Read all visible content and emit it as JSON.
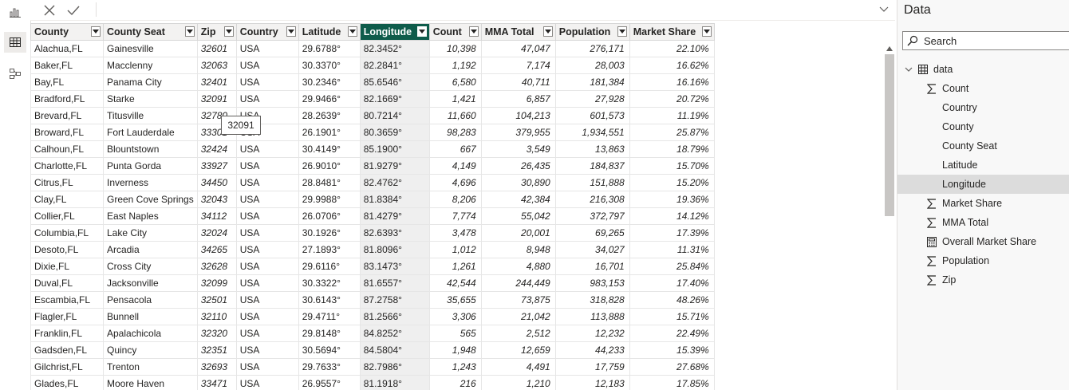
{
  "formula_bar": {
    "cancel_icon": "close-icon",
    "commit_icon": "check-icon"
  },
  "rail": {
    "items": [
      "report-view-icon",
      "table-view-icon",
      "model-view-icon"
    ]
  },
  "columns": [
    {
      "label": "County",
      "width": 91
    },
    {
      "label": "County Seat",
      "width": 114
    },
    {
      "label": "Zip",
      "width": 49
    },
    {
      "label": "Country",
      "width": 78
    },
    {
      "label": "Latitude",
      "width": 77
    },
    {
      "label": "Longitude",
      "width": 87
    },
    {
      "label": "Count",
      "width": 65
    },
    {
      "label": "MMA Total",
      "width": 93
    },
    {
      "label": "Population",
      "width": 93
    },
    {
      "label": "Market Share",
      "width": 106
    }
  ],
  "selected_column": "Longitude",
  "rows": [
    [
      "Alachua,FL",
      "Gainesville",
      "32601",
      "USA",
      "29.6788°",
      "82.3452°",
      "10,398",
      "47,047",
      "276,171",
      "22.10%"
    ],
    [
      "Baker,FL",
      "Macclenny",
      "32063",
      "USA",
      "30.3370°",
      "82.2841°",
      "1,192",
      "7,174",
      "28,003",
      "16.62%"
    ],
    [
      "Bay,FL",
      "Panama City",
      "32401",
      "USA",
      "30.2346°",
      "85.6546°",
      "6,580",
      "40,711",
      "181,384",
      "16.16%"
    ],
    [
      "Bradford,FL",
      "Starke",
      "32091",
      "USA",
      "29.9466°",
      "82.1669°",
      "1,421",
      "6,857",
      "27,928",
      "20.72%"
    ],
    [
      "Brevard,FL",
      "Titusville",
      "32780",
      "USA",
      "28.2639°",
      "80.7214°",
      "11,660",
      "104,213",
      "601,573",
      "11.19%"
    ],
    [
      "Broward,FL",
      "Fort Lauderdale",
      "33301",
      "USA",
      "26.1901°",
      "80.3659°",
      "98,283",
      "379,955",
      "1,934,551",
      "25.87%"
    ],
    [
      "Calhoun,FL",
      "Blountstown",
      "32424",
      "USA",
      "30.4149°",
      "85.1900°",
      "667",
      "3,549",
      "13,863",
      "18.79%"
    ],
    [
      "Charlotte,FL",
      "Punta Gorda",
      "33927",
      "USA",
      "26.9010°",
      "81.9279°",
      "4,149",
      "26,435",
      "184,837",
      "15.70%"
    ],
    [
      "Citrus,FL",
      "Inverness",
      "34450",
      "USA",
      "28.8481°",
      "82.4762°",
      "4,696",
      "30,890",
      "151,888",
      "15.20%"
    ],
    [
      "Clay,FL",
      "Green Cove Springs",
      "32043",
      "USA",
      "29.9988°",
      "81.8384°",
      "8,206",
      "42,384",
      "216,308",
      "19.36%"
    ],
    [
      "Collier,FL",
      "East Naples",
      "34112",
      "USA",
      "26.0706°",
      "81.4279°",
      "7,774",
      "55,042",
      "372,797",
      "14.12%"
    ],
    [
      "Columbia,FL",
      "Lake City",
      "32024",
      "USA",
      "30.1926°",
      "82.6393°",
      "3,478",
      "20,001",
      "69,265",
      "17.39%"
    ],
    [
      "Desoto,FL",
      "Arcadia",
      "34265",
      "USA",
      "27.1893°",
      "81.8096°",
      "1,012",
      "8,948",
      "34,027",
      "11.31%"
    ],
    [
      "Dixie,FL",
      "Cross City",
      "32628",
      "USA",
      "29.6116°",
      "83.1473°",
      "1,261",
      "4,880",
      "16,701",
      "25.84%"
    ],
    [
      "Duval,FL",
      "Jacksonville",
      "32099",
      "USA",
      "30.3322°",
      "81.6557°",
      "42,544",
      "244,449",
      "983,153",
      "17.40%"
    ],
    [
      "Escambia,FL",
      "Pensacola",
      "32501",
      "USA",
      "30.6143°",
      "87.2758°",
      "35,655",
      "73,875",
      "318,828",
      "48.26%"
    ],
    [
      "Flagler,FL",
      "Bunnell",
      "32110",
      "USA",
      "29.4711°",
      "81.2566°",
      "3,306",
      "21,042",
      "113,888",
      "15.71%"
    ],
    [
      "Franklin,FL",
      "Apalachicola",
      "32320",
      "USA",
      "29.8148°",
      "84.8252°",
      "565",
      "2,512",
      "12,232",
      "22.49%"
    ],
    [
      "Gadsden,FL",
      "Quincy",
      "32351",
      "USA",
      "30.5694°",
      "84.5804°",
      "1,948",
      "12,659",
      "44,233",
      "15.39%"
    ],
    [
      "Gilchrist,FL",
      "Trenton",
      "32693",
      "USA",
      "29.7633°",
      "82.7986°",
      "1,243",
      "4,491",
      "17,759",
      "27.68%"
    ],
    [
      "Glades,FL",
      "Moore Haven",
      "33471",
      "USA",
      "26.9557°",
      "81.1918°",
      "216",
      "1,210",
      "12,183",
      "17.85%"
    ]
  ],
  "tooltip": {
    "text": "32091"
  },
  "data_pane": {
    "title": "Data",
    "search_placeholder": "Search",
    "table_name": "data",
    "fields": [
      {
        "label": "Count",
        "icon": "sigma-icon"
      },
      {
        "label": "Country",
        "icon": ""
      },
      {
        "label": "County",
        "icon": ""
      },
      {
        "label": "County Seat",
        "icon": ""
      },
      {
        "label": "Latitude",
        "icon": ""
      },
      {
        "label": "Longitude",
        "icon": ""
      },
      {
        "label": "Market Share",
        "icon": "sigma-icon"
      },
      {
        "label": "MMA Total",
        "icon": "sigma-icon"
      },
      {
        "label": "Overall Market Share",
        "icon": "calculator-icon"
      },
      {
        "label": "Population",
        "icon": "sigma-icon"
      },
      {
        "label": "Zip",
        "icon": "sigma-icon"
      }
    ],
    "selected_field": "Longitude"
  },
  "colors": {
    "selected_header": "#0f5c4b",
    "selected_column": "#efefef",
    "selected_field": "#dcdcdc"
  }
}
